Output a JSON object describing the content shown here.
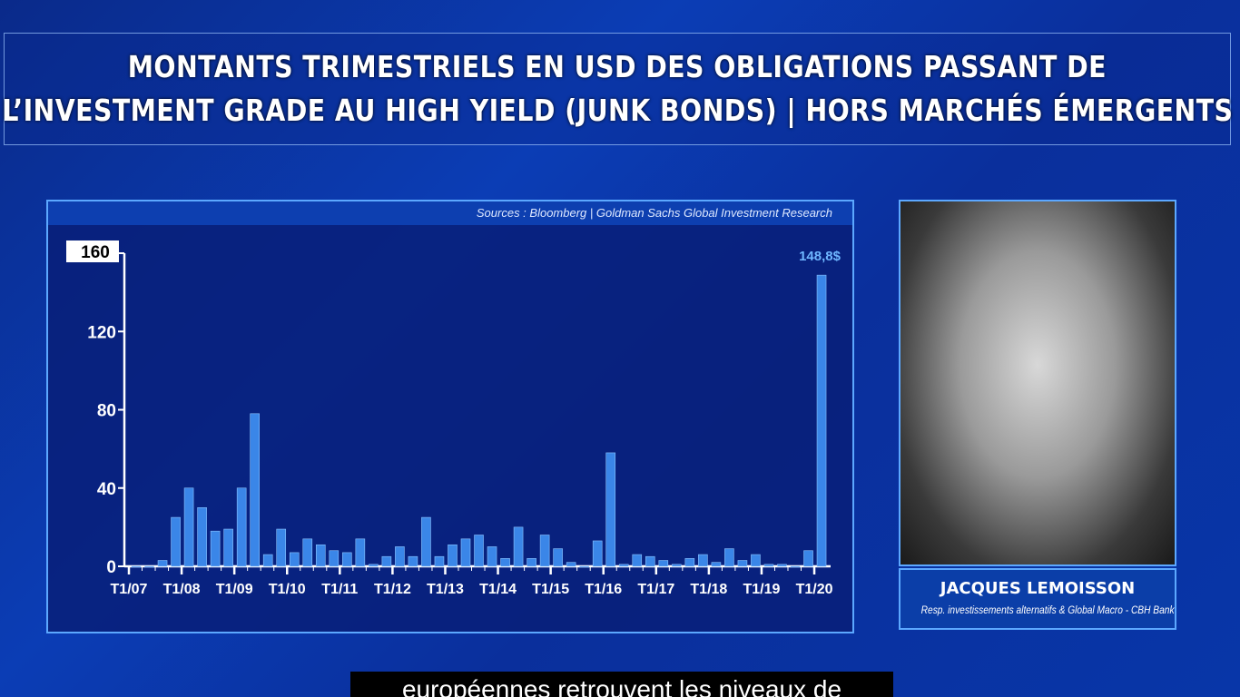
{
  "title": {
    "line1": "MONTANTS TRIMESTRIELS EN USD DES OBLIGATIONS PASSANT DE",
    "line2": "L’INVESTMENT GRADE AU HIGH YIELD (JUNK BONDS) | HORS MARCHÉS ÉMERGENTS"
  },
  "source": "Sources : Bloomberg | Goldman Sachs Global Investment Research",
  "speaker": {
    "name": "JACQUES LEMOISSON",
    "role": "Resp. investissements alternatifs & Global Macro - CBH Bank"
  },
  "subtitle": "européennes retrouvent les niveaux de",
  "chart_data": {
    "type": "bar",
    "title": "",
    "ylim": [
      0,
      160
    ],
    "yticks": [
      "0",
      "40",
      "80",
      "120",
      "160"
    ],
    "xtick_labels": [
      "T1/07",
      "T1/08",
      "T1/09",
      "T1/10",
      "T1/11",
      "T1/12",
      "T1/13",
      "T1/14",
      "T1/15",
      "T1/16",
      "T1/17",
      "T1/18",
      "T1/19",
      "T1/20"
    ],
    "values": [
      0,
      0,
      3,
      25,
      40,
      30,
      18,
      19,
      40,
      78,
      6,
      19,
      7,
      14,
      11,
      8,
      7,
      14,
      1,
      5,
      10,
      5,
      25,
      5,
      11,
      14,
      16,
      10,
      4,
      20,
      4,
      16,
      9,
      2,
      0,
      13,
      58,
      1,
      6,
      5,
      3,
      1,
      4,
      6,
      2,
      9,
      3,
      6,
      1,
      1,
      0,
      8,
      148.8
    ],
    "last_label": "148,8$",
    "bar_color": "#3a86e8",
    "grid": false
  }
}
